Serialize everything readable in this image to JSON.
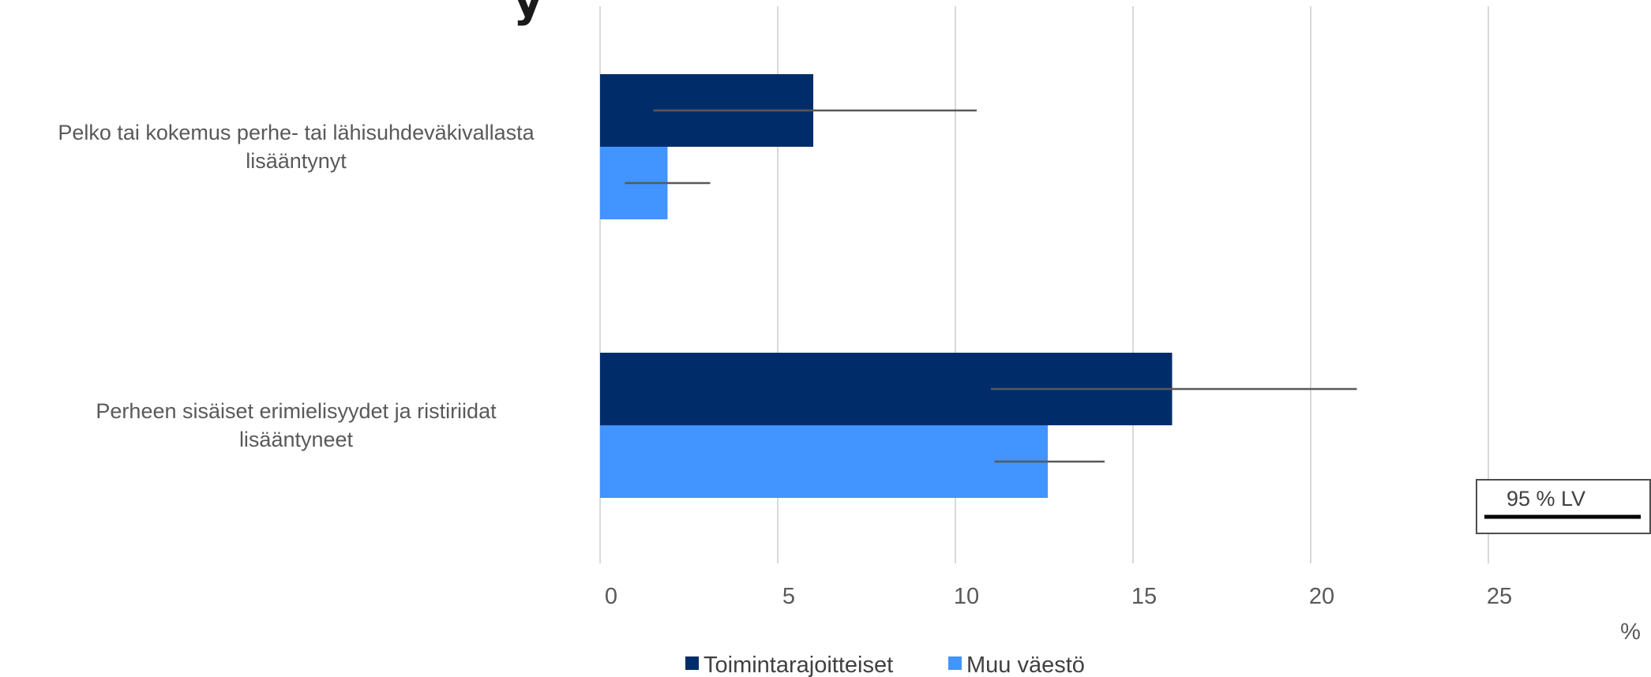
{
  "chart_data": {
    "type": "bar",
    "orientation": "horizontal",
    "title": "",
    "xlabel": "",
    "ylabel": "",
    "unit": "%",
    "categories": [
      [
        "Pelko tai kokemus perhe- tai lähisuhdeväkivallasta",
        "lisääntynyt"
      ],
      [
        "Perheen sisäiset erimielisyydet ja ristiriidat",
        "lisääntyneet"
      ]
    ],
    "series": [
      {
        "name": "Toimintarajoitteiset",
        "color": "#002D6A",
        "values": [
          6.0,
          16.1
        ],
        "ci_low": [
          1.5,
          11.0
        ],
        "ci_high": [
          10.6,
          21.3
        ]
      },
      {
        "name": "Muu väestö",
        "color": "#4294FF",
        "values": [
          1.9,
          12.6
        ],
        "ci_low": [
          0.7,
          11.1
        ],
        "ci_high": [
          3.1,
          14.2
        ]
      }
    ],
    "xlim": [
      0,
      25
    ],
    "xticks": [
      0,
      5,
      10,
      15,
      20,
      25
    ],
    "grid": true,
    "legend_position": "bottom",
    "ci_legend_label": "95 % LV",
    "header_fragment": "y"
  }
}
